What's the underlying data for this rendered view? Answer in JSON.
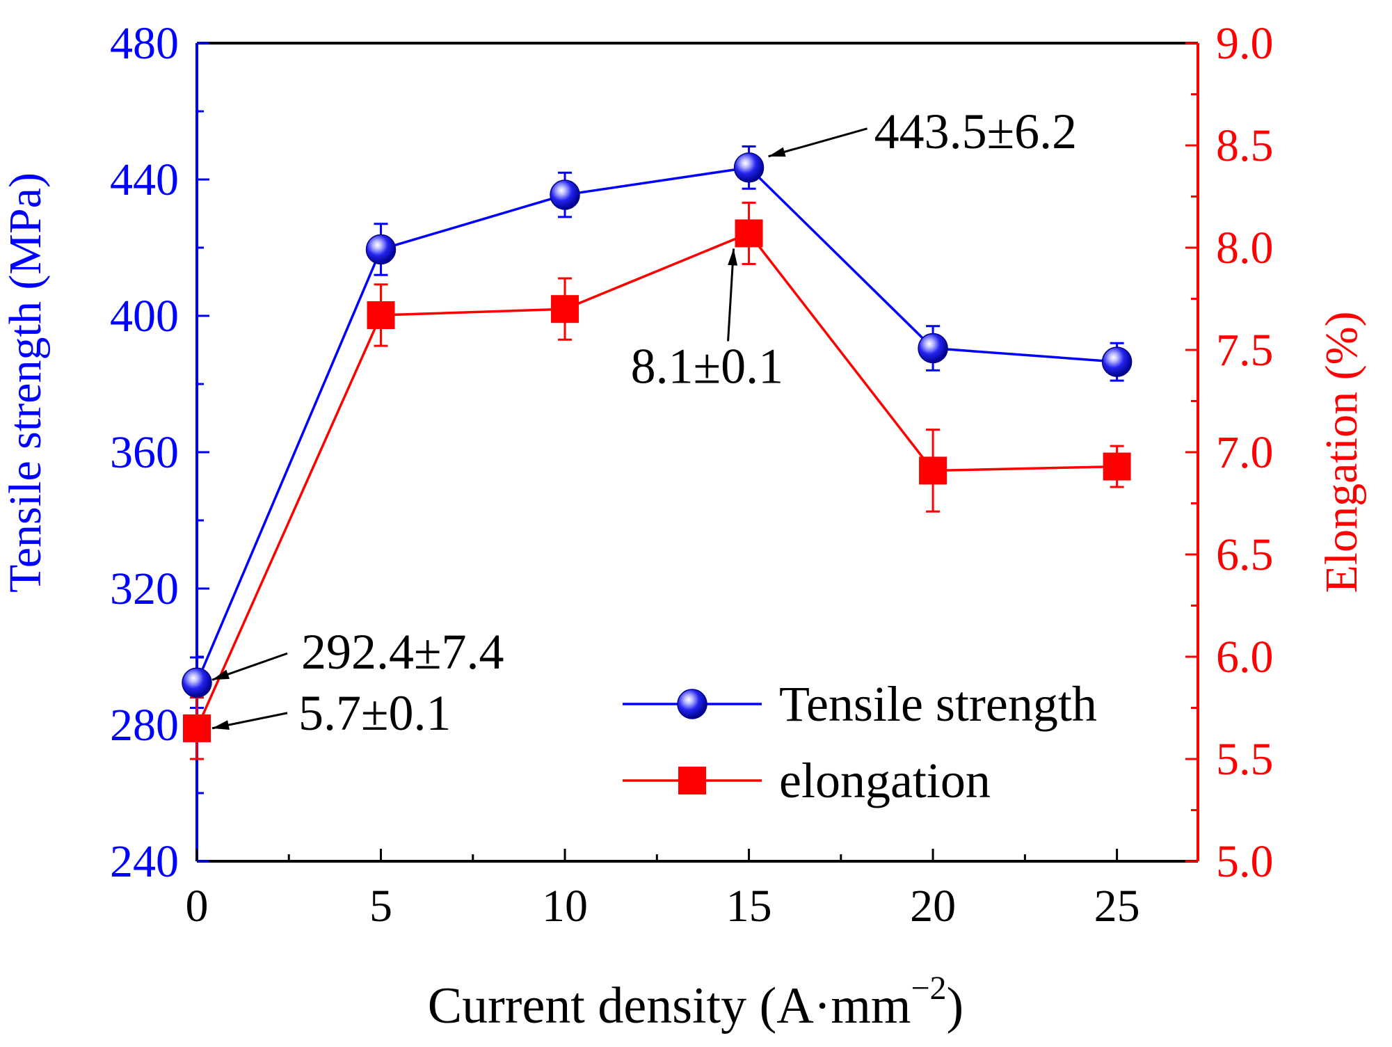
{
  "chart_data": {
    "type": "line",
    "xlabel": "Current density (A·mm",
    "xlabel_sup": "−2",
    "xlabel_close": ")",
    "ylabel_left": "Tensile strength (MPa)",
    "ylabel_right": "Elongation (%)",
    "x": [
      0,
      5,
      10,
      15,
      20,
      25
    ],
    "xlim": [
      0,
      27.2
    ],
    "x_ticks": [
      0,
      5,
      10,
      15,
      20,
      25
    ],
    "x_tick_labels": [
      "0",
      "5",
      "10",
      "15",
      "20",
      "25"
    ],
    "ylim_left": [
      240,
      480
    ],
    "y_left_ticks": [
      240,
      280,
      320,
      360,
      400,
      440,
      480
    ],
    "y_left_tick_labels": [
      "240",
      "280",
      "320",
      "360",
      "400",
      "440",
      "480"
    ],
    "ylim_right": [
      5.0,
      9.0
    ],
    "y_right_ticks": [
      5.0,
      5.5,
      6.0,
      6.5,
      7.0,
      7.5,
      8.0,
      8.5,
      9.0
    ],
    "y_right_tick_labels": [
      "5.0",
      "5.5",
      "6.0",
      "6.5",
      "7.0",
      "7.5",
      "8.0",
      "8.5",
      "9.0"
    ],
    "grid": false,
    "legend_position": "bottom-right",
    "series": [
      {
        "name": "Tensile strength",
        "axis": "left",
        "color": "#0000ff",
        "marker": "sphere",
        "values": [
          292.4,
          419.5,
          435.5,
          443.5,
          390.5,
          386.5
        ],
        "errors": [
          7.4,
          7.5,
          6.5,
          6.2,
          6.5,
          5.5
        ]
      },
      {
        "name": "elongation",
        "axis": "right",
        "color": "#ff0000",
        "marker": "square",
        "values": [
          5.65,
          7.67,
          7.7,
          8.07,
          6.91,
          6.93
        ],
        "errors": [
          0.15,
          0.15,
          0.15,
          0.15,
          0.2,
          0.1
        ]
      }
    ],
    "annotations": [
      {
        "text": "292.4±7.4",
        "series": 0,
        "point": 0
      },
      {
        "text": "5.7±0.1",
        "series": 1,
        "point": 0
      },
      {
        "text": "443.5±6.2",
        "series": 0,
        "point": 3
      },
      {
        "text": "8.1±0.1",
        "series": 1,
        "point": 3
      }
    ]
  }
}
